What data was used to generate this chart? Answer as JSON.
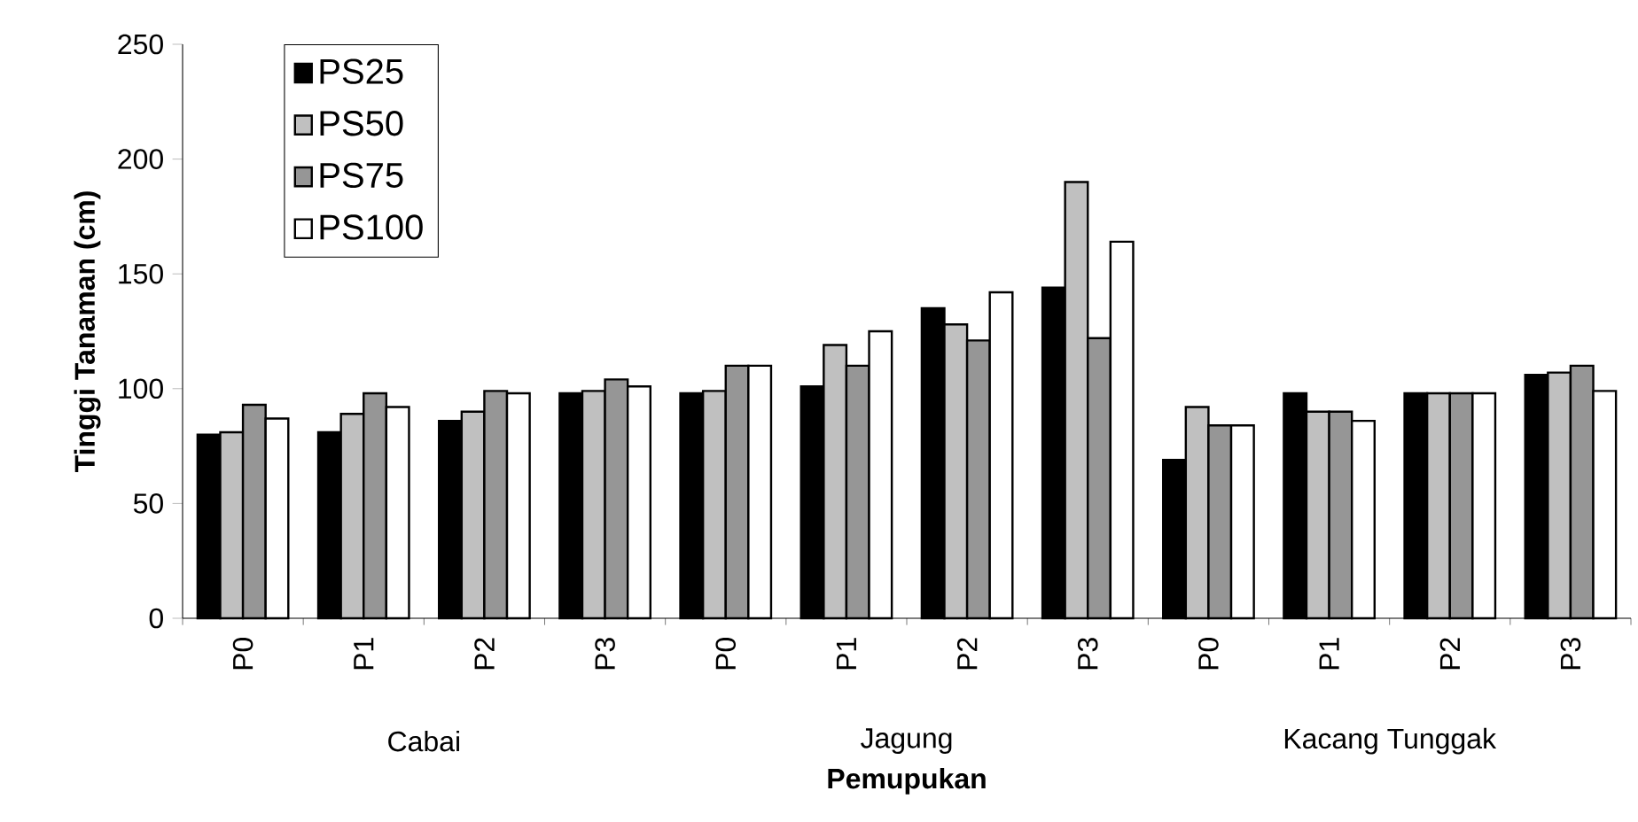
{
  "chart_data": {
    "type": "bar",
    "xlabel": "Pemupukan",
    "ylabel": "Tinggi Tanaman (cm)",
    "categories": [
      "P0",
      "P1",
      "P2",
      "P3",
      "P0",
      "P1",
      "P2",
      "P3",
      "P0",
      "P1",
      "P2",
      "P3"
    ],
    "series": [
      {
        "name": "PS25",
        "color": "#000000",
        "values": [
          80,
          81,
          86,
          98,
          98,
          101,
          135,
          144,
          69,
          98,
          98,
          106
        ]
      },
      {
        "name": "PS50",
        "color": "#c0c0c0",
        "values": [
          81,
          89,
          90,
          99,
          99,
          119,
          128,
          190,
          92,
          90,
          98,
          107
        ]
      },
      {
        "name": "PS75",
        "color": "#969696",
        "values": [
          93,
          98,
          99,
          104,
          110,
          110,
          121,
          122,
          84,
          90,
          98,
          110
        ]
      },
      {
        "name": "PS100",
        "color": "#ffffff",
        "values": [
          87,
          92,
          98,
          101,
          110,
          125,
          142,
          164,
          84,
          86,
          98,
          99
        ]
      }
    ],
    "annotations": [
      "Cabai",
      "Jagung",
      "Kacang Tunggak"
    ],
    "ylim": [
      0,
      250
    ],
    "yticks": [
      0,
      50,
      100,
      150,
      200,
      250
    ],
    "legend": "top left"
  }
}
